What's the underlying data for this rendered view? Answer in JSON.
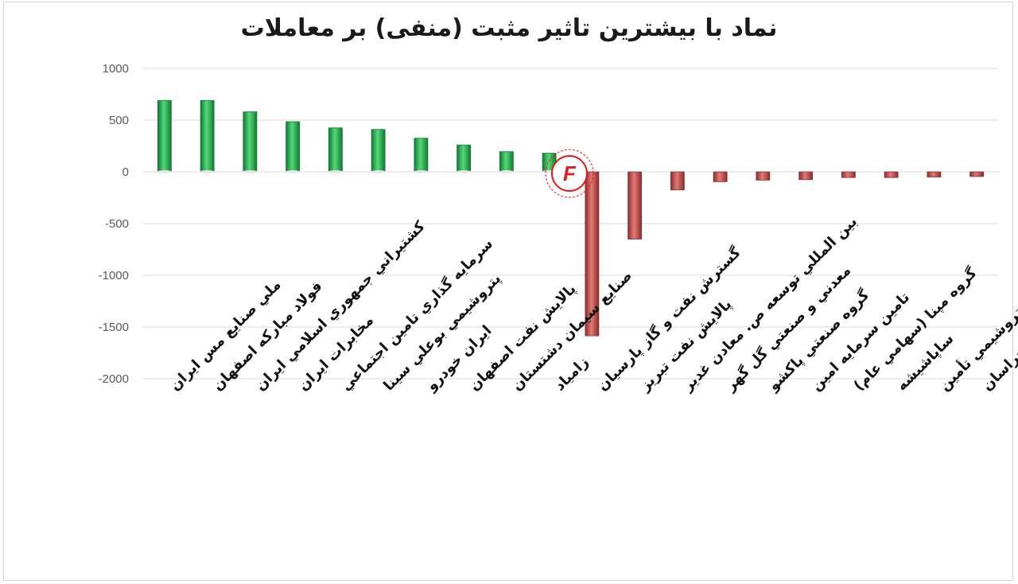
{
  "chart_data": {
    "type": "bar",
    "title": "نماد با بیشترین تاثیر مثبت (منفی) بر معاملات",
    "categories": [
      "ملي صنايع مس ايران",
      "فولاد مباركه اصفهان",
      "كشتيراني جمهوري اسلامي ايران",
      "مخابرات ايران",
      "سرمايه گذاري تامين اجتماعي",
      "پتروشيمي بوعلي سينا",
      "ايران خودرو",
      "پالايش نفت اصفهان",
      "صنايع سيمان دشتستان",
      "زامياد",
      "گسترش نفت و گاز پارسيان",
      "پالايش نفت تبريز",
      "بين المللي توسعه ص. معادن غدير",
      "معدني و صنعتي گل گهر",
      "گروه صنعتي پاكشو",
      "تامين سرمايه امين",
      "گروه مپنا (سهامي عام)",
      "ساپاشيشه",
      "س. نفت و گاز و پتروشيمي تأمين",
      "پتروشيمي خراسان"
    ],
    "values": [
      690,
      690,
      580,
      485,
      425,
      410,
      325,
      260,
      195,
      180,
      -1585,
      -650,
      -175,
      -95,
      -80,
      -75,
      -55,
      -55,
      -50,
      -45
    ],
    "ylim": [
      -2000,
      1000
    ],
    "yticks": [
      "1000",
      "500",
      "0",
      "-500",
      "-1000",
      "-1500",
      "-2000"
    ],
    "grid": true,
    "colors": {
      "positive": "#22b14c",
      "positive_dark": "#0f7a2f",
      "negative": "#c9504e",
      "negative_dark": "#8e2d2b"
    }
  },
  "watermark_letter": "F"
}
